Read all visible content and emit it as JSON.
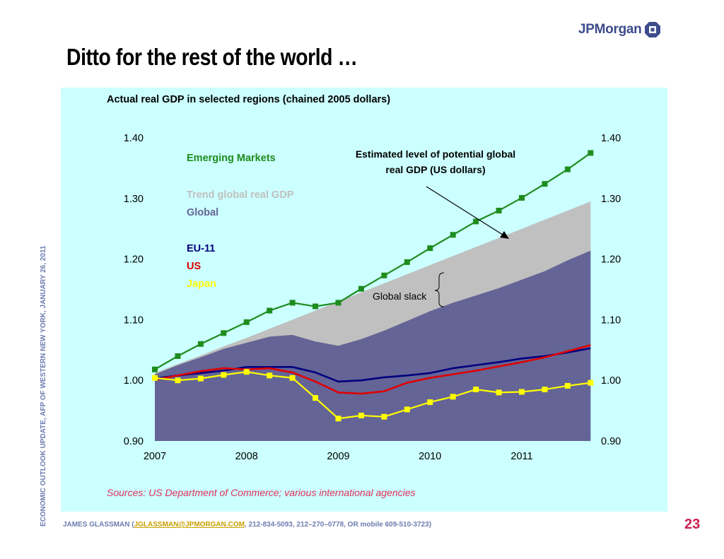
{
  "brand": {
    "name": "JPMorgan"
  },
  "slide_title": "Ditto for the rest of the world …",
  "side_text": "ECONOMIC OUTLOOK UPDATE, AFP OF WESTERN NEW YORK, JANUARY 26, 2011",
  "footer": {
    "prefix": "JAMES GLASSMAN (",
    "email": "JGLASSMAN@JPMORGAN.COM",
    "suffix": ", 212-834-5093, 212–270–0778, OR mobile 609-510-3723)"
  },
  "page_number": "23",
  "sources": "Sources: US Department of Commerce; various international agencies",
  "chart_data": {
    "type": "line",
    "title": "Actual real GDP in selected regions (chained 2005 dollars)",
    "ylim": [
      0.9,
      1.4
    ],
    "y_ticks": [
      "1.40",
      "1.30",
      "1.20",
      "1.10",
      "1.00",
      "0.90"
    ],
    "x_ticks": [
      "2007",
      "2008",
      "2009",
      "2010",
      "2011"
    ],
    "x_tick_values": [
      2007,
      2008,
      2009,
      2010,
      2011
    ],
    "x": [
      2007.0,
      2007.25,
      2007.5,
      2007.75,
      2008.0,
      2008.25,
      2008.5,
      2008.75,
      2009.0,
      2009.25,
      2009.5,
      2009.75,
      2010.0,
      2010.25,
      2010.5,
      2010.75,
      2011.0,
      2011.25,
      2011.5,
      2011.75
    ],
    "areas": [
      {
        "name": "Trend global real GDP",
        "color": "#c0c0c0",
        "values": [
          1.012,
          1.027,
          1.041,
          1.056,
          1.07,
          1.085,
          1.1,
          1.115,
          1.13,
          1.145,
          1.16,
          1.175,
          1.19,
          1.205,
          1.22,
          1.235,
          1.25,
          1.265,
          1.28,
          1.295
        ]
      },
      {
        "name": "Global",
        "color": "#646496",
        "values": [
          1.01,
          1.025,
          1.038,
          1.052,
          1.062,
          1.072,
          1.075,
          1.064,
          1.057,
          1.068,
          1.082,
          1.098,
          1.114,
          1.128,
          1.14,
          1.152,
          1.166,
          1.18,
          1.198,
          1.214
        ]
      }
    ],
    "series": [
      {
        "name": "Emerging Markets",
        "color": "#1e8c1e",
        "marker": true,
        "values": [
          1.018,
          1.04,
          1.06,
          1.078,
          1.096,
          1.115,
          1.128,
          1.122,
          1.128,
          1.151,
          1.173,
          1.195,
          1.218,
          1.24,
          1.262,
          1.28,
          1.301,
          1.324,
          1.348,
          1.375
        ]
      },
      {
        "name": "EU-11",
        "color": "#000080",
        "marker": false,
        "values": [
          1.003,
          1.008,
          1.012,
          1.016,
          1.022,
          1.022,
          1.022,
          1.013,
          0.998,
          1.0,
          1.005,
          1.008,
          1.012,
          1.02,
          1.025,
          1.03,
          1.036,
          1.04,
          1.046,
          1.053
        ]
      },
      {
        "name": "US",
        "color": "#e00000",
        "marker": false,
        "values": [
          1.001,
          1.008,
          1.015,
          1.02,
          1.018,
          1.02,
          1.013,
          0.998,
          0.98,
          0.978,
          0.982,
          0.996,
          1.004,
          1.01,
          1.016,
          1.023,
          1.03,
          1.038,
          1.048,
          1.058
        ]
      },
      {
        "name": "Japan",
        "color": "#ffff00",
        "marker": true,
        "values": [
          1.004,
          1.0,
          1.003,
          1.009,
          1.014,
          1.008,
          1.004,
          0.971,
          0.937,
          0.942,
          0.94,
          0.952,
          0.964,
          0.973,
          0.985,
          0.98,
          0.981,
          0.985,
          0.991,
          0.996
        ]
      }
    ],
    "legend": [
      {
        "label": "Emerging Markets",
        "color": "#1e8c1e"
      },
      {
        "label": "Trend global real GDP",
        "color": "#c0c0c0"
      },
      {
        "label": "Global",
        "color": "#646496"
      },
      {
        "label": "EU-11",
        "color": "#000080"
      },
      {
        "label": "US",
        "color": "#e00000"
      },
      {
        "label": "Japan",
        "color": "#ffff00"
      }
    ],
    "annotations": {
      "potential_line1": "Estimated level of potential global",
      "potential_line2": "real GDP (US dollars)",
      "slack": "Global slack"
    }
  }
}
